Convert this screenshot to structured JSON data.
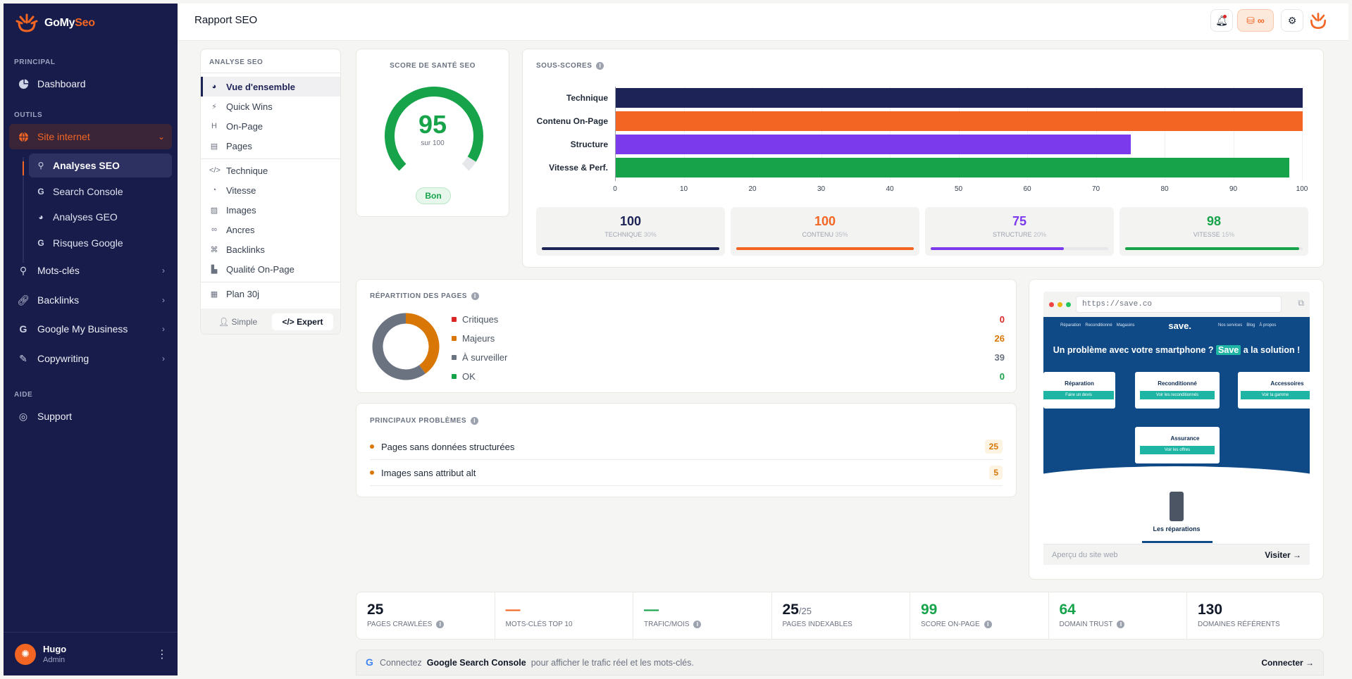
{
  "app": {
    "name_a": "GoMy",
    "name_b": "Seo"
  },
  "sidebar": {
    "sections": {
      "principal": "PRINCIPAL",
      "outils": "OUTILS",
      "aide": "AIDE"
    },
    "dashboard": "Dashboard",
    "site": "Site internet",
    "subs": [
      "Analyses SEO",
      "Search Console",
      "Analyses GEO",
      "Risques Google"
    ],
    "mots": "Mots-clés",
    "backlinks": "Backlinks",
    "gmb": "Google My Business",
    "copy": "Copywriting",
    "support": "Support",
    "user": {
      "name": "Hugo",
      "role": "Admin"
    }
  },
  "topbar": {
    "title": "Rapport SEO",
    "credits": "∞"
  },
  "analyse_menu": {
    "title": "ANALYSE SEO",
    "items": [
      "Vue d'ensemble",
      "Quick Wins",
      "On-Page",
      "Pages",
      "Technique",
      "Vitesse",
      "Images",
      "Ancres",
      "Backlinks",
      "Qualité On-Page",
      "Plan 30j"
    ],
    "mode_simple": "Simple",
    "mode_expert": "Expert"
  },
  "health": {
    "title": "SCORE DE SANTÉ SEO",
    "score": "95",
    "sub": "sur 100",
    "badge": "Bon",
    "value": 95
  },
  "chart_data": {
    "type": "bar",
    "orientation": "horizontal",
    "title": "SOUS-SCORES",
    "categories": [
      "Technique",
      "Contenu On-Page",
      "Structure",
      "Vitesse & Perf."
    ],
    "values": [
      100,
      100,
      75,
      98
    ],
    "colors": [
      "#1e2357",
      "#f26522",
      "#7c3aed",
      "#16a34a"
    ],
    "xlim": [
      0,
      100
    ],
    "xticks": [
      "0",
      "10",
      "20",
      "30",
      "40",
      "50",
      "60",
      "70",
      "80",
      "90",
      "100"
    ],
    "grid": true
  },
  "subscores": [
    {
      "value": "100",
      "label": "TECHNIQUE",
      "weight": "30%",
      "color": "#1e2357",
      "pct": 100
    },
    {
      "value": "100",
      "label": "CONTENU",
      "weight": "35%",
      "color": "#f26522",
      "pct": 100
    },
    {
      "value": "75",
      "label": "STRUCTURE",
      "weight": "20%",
      "color": "#7c3aed",
      "pct": 75
    },
    {
      "value": "98",
      "label": "VITESSE",
      "weight": "15%",
      "color": "#16a34a",
      "pct": 98
    }
  ],
  "pages": {
    "title": "RÉPARTITION DES PAGES",
    "items": [
      {
        "label": "Critiques",
        "value": "0",
        "color": "#dc2626"
      },
      {
        "label": "Majeurs",
        "value": "26",
        "color": "#d97706"
      },
      {
        "label": "À surveiller",
        "value": "39",
        "color": "#6b7280"
      },
      {
        "label": "OK",
        "value": "0",
        "color": "#16a34a"
      }
    ]
  },
  "problems": {
    "title": "PRINCIPAUX PROBLÈMES",
    "items": [
      {
        "label": "Pages sans données structurées",
        "count": "25"
      },
      {
        "label": "Images sans attribut alt",
        "count": "5"
      }
    ]
  },
  "preview": {
    "url": "https://save.co",
    "site_nav": [
      "Réparation",
      "Reconditionné",
      "Magasins",
      "Nos services",
      "Blog",
      "À propos"
    ],
    "site_logo": "save.",
    "headline_a": "Un problème avec votre smartphone ?",
    "headline_hl": "Save",
    "headline_b": "a la solution !",
    "cards": [
      {
        "title": "Réparation",
        "cta": "Faire un devis"
      },
      {
        "title": "Reconditionné",
        "cta": "Voir les reconditionnés"
      },
      {
        "title": "Accessoires",
        "cta": "Voir la gamme"
      },
      {
        "title": "Assurance",
        "cta": "Voir les offres"
      }
    ],
    "section": "Les réparations",
    "footer_label": "Aperçu du site web",
    "visit": "Visiter →"
  },
  "stats": [
    {
      "value": "25",
      "suffix": "",
      "label": "PAGES CRAWLÉES",
      "color": "#111827",
      "info": true
    },
    {
      "value": "—",
      "suffix": "",
      "label": "MOTS-CLÉS TOP 10",
      "color": "#f26522",
      "info": false
    },
    {
      "value": "—",
      "suffix": "",
      "label": "TRAFIC/MOIS",
      "color": "#16a34a",
      "info": true
    },
    {
      "value": "25",
      "suffix": "/25",
      "label": "PAGES INDEXABLES",
      "color": "#111827",
      "info": false
    },
    {
      "value": "99",
      "suffix": "",
      "label": "SCORE ON-PAGE",
      "color": "#16a34a",
      "info": true
    },
    {
      "value": "64",
      "suffix": "",
      "label": "DOMAIN TRUST",
      "color": "#16a34a",
      "info": true
    },
    {
      "value": "130",
      "suffix": "",
      "label": "DOMAINES RÉFÉRENTS",
      "color": "#111827",
      "info": false
    }
  ],
  "gsc": {
    "pre": "Connectez",
    "brand": "Google Search Console",
    "post": "pour afficher le trafic réel et les mots-clés.",
    "cta": "Connecter →"
  }
}
